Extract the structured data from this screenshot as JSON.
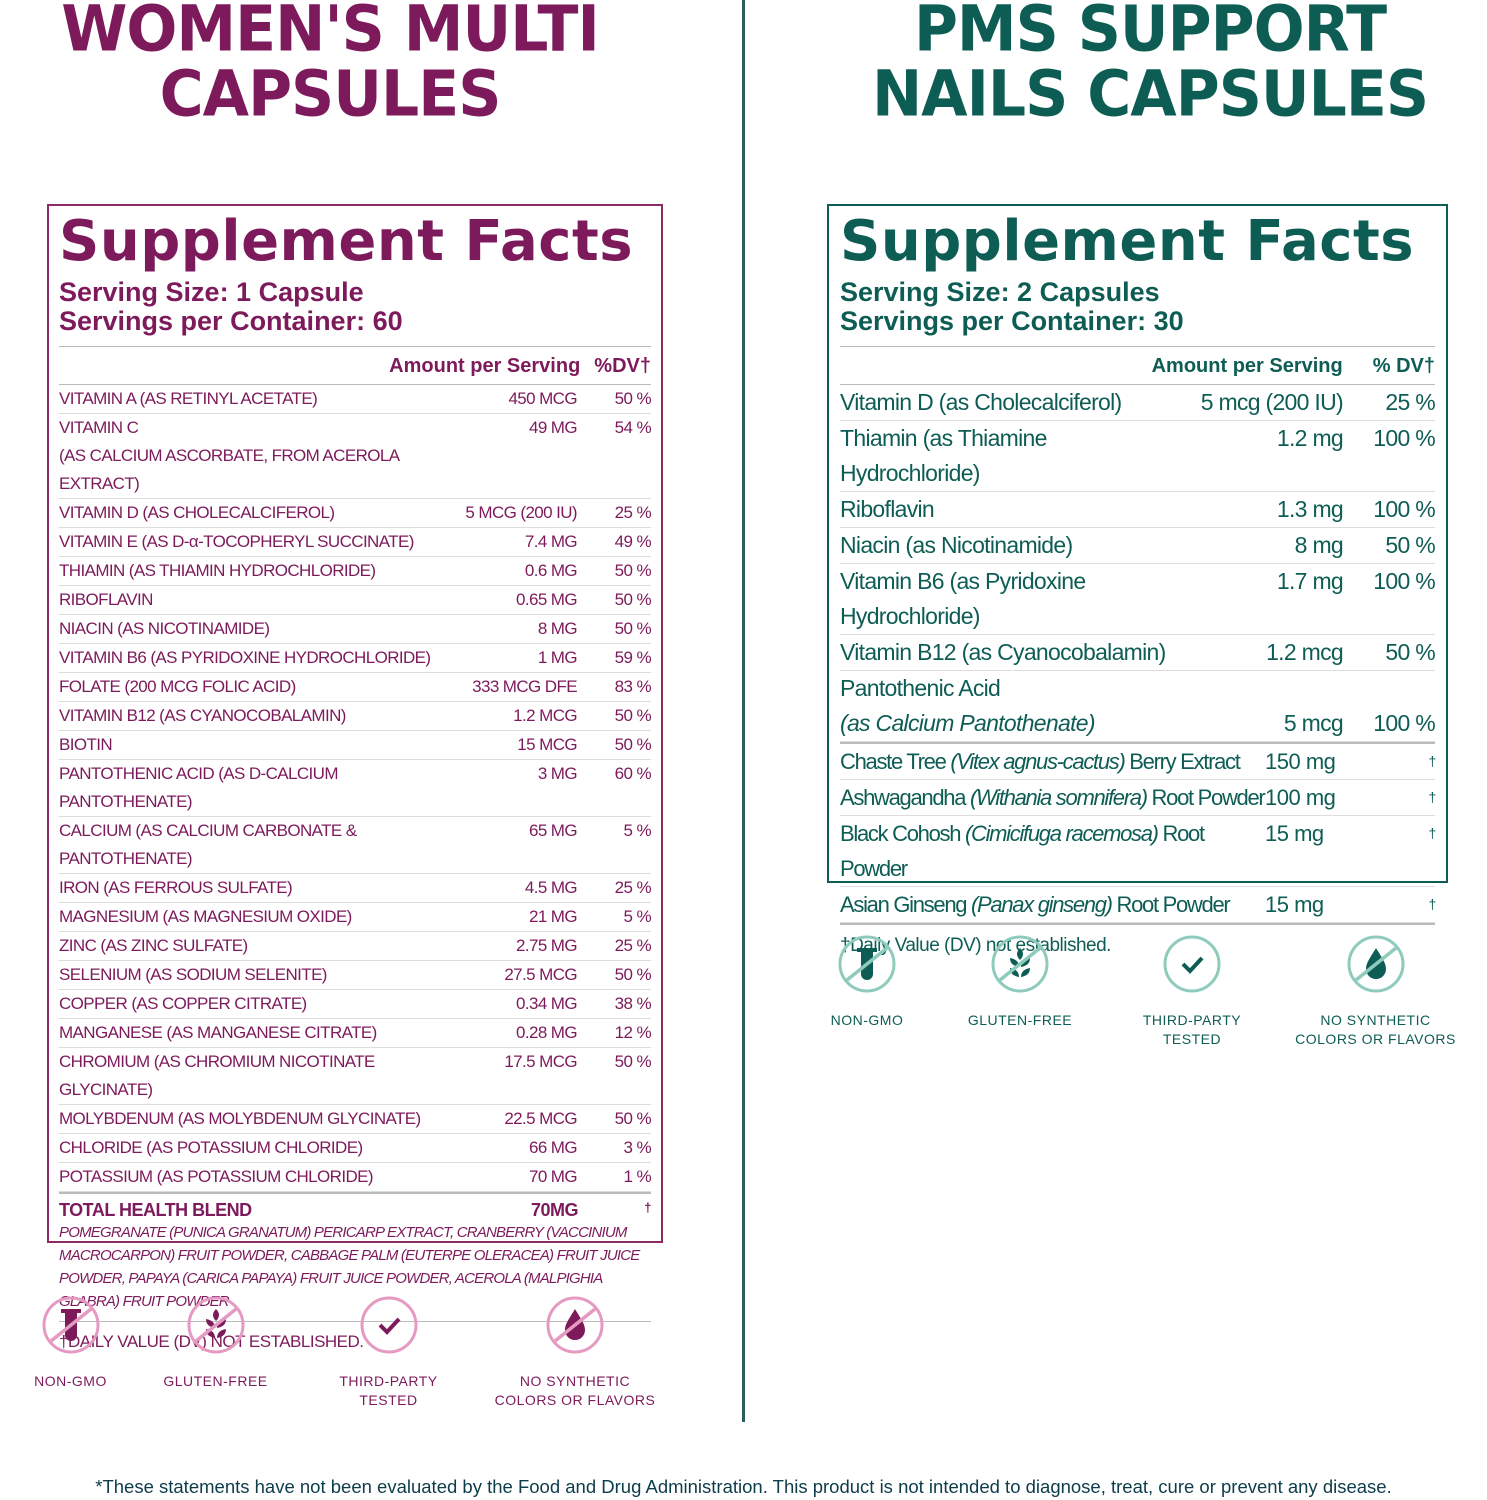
{
  "left": {
    "title_line1": "WOMEN'S MULTI",
    "title_line2": "CAPSULES",
    "color": "#7d1a5b",
    "accent_light": "#e59ac2",
    "facts_title": "Supplement Facts",
    "serving_size": "Serving Size: 1 Capsule",
    "servings": "Servings per Container: 60",
    "amount_header": "Amount per Serving",
    "dv_header": "%DV†",
    "rows": [
      {
        "name": "VITAMIN A (AS RETINYL ACETATE)",
        "amount": "450 MCG",
        "dv": "50 %"
      },
      {
        "name": "VITAMIN C",
        "name2": "(AS CALCIUM ASCORBATE, FROM ACEROLA EXTRACT)",
        "amount": "49 MG",
        "dv": "54 %"
      },
      {
        "name": "VITAMIN D (AS CHOLECALCIFEROL)",
        "amount": "5 MCG (200 IU)",
        "dv": "25 %"
      },
      {
        "name": "VITAMIN E (AS D-α-TOCOPHERYL SUCCINATE)",
        "amount": "7.4 MG",
        "dv": "49 %"
      },
      {
        "name": "THIAMIN (AS THIAMIN HYDROCHLORIDE)",
        "amount": "0.6 MG",
        "dv": "50 %"
      },
      {
        "name": "RIBOFLAVIN",
        "amount": "0.65 MG",
        "dv": "50 %"
      },
      {
        "name": "NIACIN (AS NICOTINAMIDE)",
        "amount": "8 MG",
        "dv": "50 %"
      },
      {
        "name": "VITAMIN B6 (AS PYRIDOXINE HYDROCHLORIDE)",
        "amount": "1 MG",
        "dv": "59 %"
      },
      {
        "name": "FOLATE (200 MCG FOLIC ACID)",
        "amount": "333 MCG DFE",
        "dv": "83 %"
      },
      {
        "name": "VITAMIN B12 (AS CYANOCOBALAMIN)",
        "amount": "1.2 MCG",
        "dv": "50 %"
      },
      {
        "name": "BIOTIN",
        "amount": "15 MCG",
        "dv": "50 %"
      },
      {
        "name": "PANTOTHENIC ACID (AS D-CALCIUM PANTOTHENATE)",
        "amount": "3 MG",
        "dv": "60 %"
      },
      {
        "name": "CALCIUM (AS CALCIUM CARBONATE & PANTOTHENATE)",
        "amount": "65 MG",
        "dv": "5 %"
      },
      {
        "name": "IRON (AS FERROUS SULFATE)",
        "amount": "4.5 MG",
        "dv": "25 %"
      },
      {
        "name": "MAGNESIUM (AS MAGNESIUM OXIDE)",
        "amount": "21 MG",
        "dv": "5 %"
      },
      {
        "name": "ZINC (AS ZINC SULFATE)",
        "amount": "2.75 MG",
        "dv": "25 %"
      },
      {
        "name": "SELENIUM (AS SODIUM SELENITE)",
        "amount": "27.5 MCG",
        "dv": "50 %"
      },
      {
        "name": "COPPER (AS COPPER CITRATE)",
        "amount": "0.34 MG",
        "dv": "38 %"
      },
      {
        "name": "MANGANESE (AS MANGANESE CITRATE)",
        "amount": "0.28 MG",
        "dv": "12 %"
      },
      {
        "name": "CHROMIUM (AS CHROMIUM NICOTINATE GLYCINATE)",
        "amount": "17.5 MCG",
        "dv": "50 %"
      },
      {
        "name": "MOLYBDENUM (AS MOLYBDENUM GLYCINATE)",
        "amount": "22.5 MCG",
        "dv": "50 %"
      },
      {
        "name": "CHLORIDE (AS POTASSIUM CHLORIDE)",
        "amount": "66 MG",
        "dv": "3 %"
      },
      {
        "name": "POTASSIUM (AS POTASSIUM CHLORIDE)",
        "amount": "70 MG",
        "dv": "1 %"
      }
    ],
    "blend": {
      "name": "TOTAL HEALTH BLEND",
      "amount": "70MG",
      "dv": "†",
      "ingredients": "POMEGRANATE (PUNICA GRANATUM) PERICARP EXTRACT, CRANBERRY (VACCINIUM MACROCARPON) FRUIT POWDER, CABBAGE PALM (EUTERPE OLERACEA) FRUIT JUICE POWDER, PAPAYA (CARICA PAPAYA) FRUIT JUICE POWDER, ACEROLA (MALPIGHIA GLABRA) FRUIT POWDER"
    },
    "footnote": "†DAILY VALUE (DV) NOT ESTABLISHED.",
    "badges": [
      {
        "icon": "test-tube-crossed-icon",
        "l1": "NON-GMO",
        "l2": ""
      },
      {
        "icon": "wheat-crossed-icon",
        "l1": "GLUTEN-FREE",
        "l2": ""
      },
      {
        "icon": "check-circle-icon",
        "l1": "THIRD-PARTY",
        "l2": "TESTED"
      },
      {
        "icon": "drop-crossed-icon",
        "l1": "NO SYNTHETIC",
        "l2": "COLORS OR FLAVORS"
      }
    ]
  },
  "right": {
    "title_line1": "PMS SUPPORT",
    "title_line2": "NAILS CAPSULES",
    "color": "#0e5d55",
    "accent_light": "#8fcbbd",
    "facts_title": "Supplement Facts",
    "serving_size": "Serving Size: 2 Capsules",
    "servings": "Servings per Container: 30",
    "amount_header": "Amount per Serving",
    "dv_header": "% DV†",
    "rows": [
      {
        "name": "Vitamin D (as Cholecalciferol)",
        "amount": "5 mcg (200 IU)",
        "dv": "25 %"
      },
      {
        "name": "Thiamin (as Thiamine Hydrochloride)",
        "amount": "1.2 mg",
        "dv": "100 %"
      },
      {
        "name": "Riboflavin",
        "amount": "1.3 mg",
        "dv": "100 %"
      },
      {
        "name": "Niacin (as Nicotinamide)",
        "amount": "8 mg",
        "dv": "50 %"
      },
      {
        "name": "Vitamin B6 (as Pyridoxine Hydrochloride)",
        "amount": "1.7 mg",
        "dv": "100 %"
      },
      {
        "name": "Vitamin B12 (as Cyanocobalamin)",
        "amount": "1.2 mcg",
        "dv": "50 %"
      },
      {
        "name": "Pantothenic Acid",
        "name2": "(as Calcium Pantothenate)",
        "amount": "5 mcg",
        "dv": "100 %"
      }
    ],
    "herbs": [
      {
        "pre": "Chaste Tree ",
        "latin": "(Vitex agnus-cactus)",
        "post": " Berry Extract",
        "amount": "150 mg",
        "dv": "†"
      },
      {
        "pre": "Ashwagandha ",
        "latin": "(Withania somnifera)",
        "post": " Root Powder",
        "amount": "100 mg",
        "dv": "†"
      },
      {
        "pre": "Black Cohosh ",
        "latin": "(Cimicifuga racemosa)",
        "post": " Root Powder",
        "amount": "15 mg",
        "dv": "†"
      },
      {
        "pre": "Asian Ginseng ",
        "latin": "(Panax ginseng)",
        "post": " Root Powder",
        "amount": "15 mg",
        "dv": "†"
      }
    ],
    "footnote": "†Daily Value (DV) not established.",
    "badges": [
      {
        "icon": "test-tube-crossed-icon",
        "l1": "NON-GMO",
        "l2": ""
      },
      {
        "icon": "wheat-crossed-icon",
        "l1": "GLUTEN-FREE",
        "l2": ""
      },
      {
        "icon": "check-circle-icon",
        "l1": "THIRD-PARTY",
        "l2": "TESTED"
      },
      {
        "icon": "drop-crossed-icon",
        "l1": "NO SYNTHETIC",
        "l2": "COLORS OR FLAVORS"
      }
    ]
  },
  "disclaimer": "*These statements have not been evaluated by the Food and Drug Administration. This product is not intended to diagnose, treat, cure or prevent any disease."
}
